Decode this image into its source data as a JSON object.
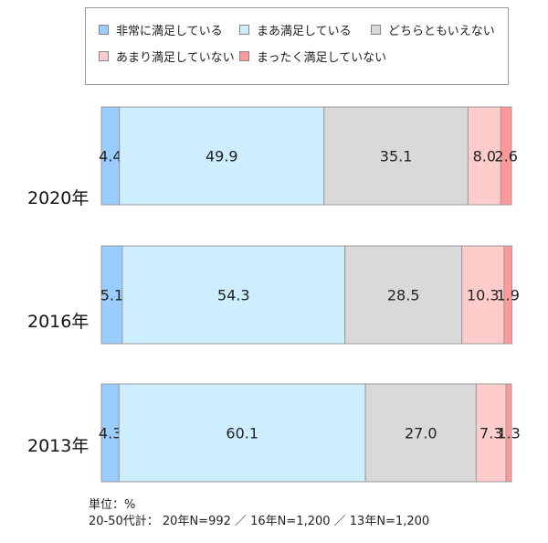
{
  "chart_data": {
    "type": "bar",
    "orientation": "horizontal",
    "stacked": true,
    "categories": [
      "2020年",
      "2016年",
      "2013年"
    ],
    "series": [
      {
        "name": "非常に満足している",
        "values": [
          4.4,
          5.1,
          4.3
        ],
        "color": "#99ccff"
      },
      {
        "name": "まあ満足している",
        "values": [
          49.9,
          54.3,
          60.1
        ],
        "color": "#cceeff"
      },
      {
        "name": "どちらともいえない",
        "values": [
          35.1,
          28.5,
          27.0
        ],
        "color": "#d9d9d9"
      },
      {
        "name": "あまり満足していない",
        "values": [
          8.0,
          10.3,
          7.3
        ],
        "color": "#ffcccc"
      },
      {
        "name": "まったく満足していない",
        "values": [
          2.6,
          1.9,
          1.3
        ],
        "color": "#ff9999"
      }
    ],
    "data_labels": [
      [
        "4.4",
        "49.9",
        "35.1",
        "8.0",
        "2.6"
      ],
      [
        "5.1",
        "54.3",
        "28.5",
        "10.3",
        "1.9"
      ],
      [
        "4.3",
        "60.1",
        "27.0",
        "7.3",
        "1.3"
      ]
    ],
    "xlim": [
      0,
      100
    ],
    "legend_position": "top",
    "grid": false
  },
  "footnotes": {
    "unit": "単位：%",
    "sample": "20-50代計：  20年N=992 ／ 16年N=1,200 ／ 13年N=1,200"
  }
}
